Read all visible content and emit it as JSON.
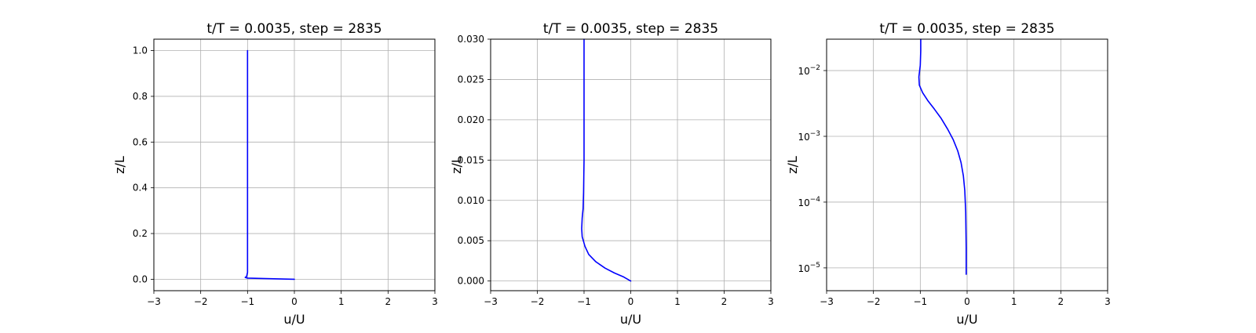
{
  "chart_data": [
    {
      "type": "line",
      "title": "t/T = 0.0035, step = 2835",
      "xlabel": "u/U",
      "ylabel": "z/L",
      "xlim": [
        -3,
        3
      ],
      "ylim": [
        -0.05,
        1.05
      ],
      "yscale": "linear",
      "grid": true,
      "xticks": [
        -3,
        -2,
        -1,
        0,
        1,
        2,
        3
      ],
      "xtick_labels": [
        "−3",
        "−2",
        "−1",
        "0",
        "1",
        "2",
        "3"
      ],
      "yticks": [
        0.0,
        0.2,
        0.4,
        0.6,
        0.8,
        1.0
      ],
      "ytick_labels": [
        "0.0",
        "0.2",
        "0.4",
        "0.6",
        "0.8",
        "1.0"
      ],
      "series": [
        {
          "color": "#0000ff",
          "x": [
            0,
            -0.6,
            -1.0,
            -1.05,
            -1.02,
            -1.0,
            -1.0,
            -1.0
          ],
          "y": [
            0,
            0.003,
            0.005,
            0.008,
            0.012,
            0.03,
            0.5,
            1.0
          ]
        }
      ]
    },
    {
      "type": "line",
      "title": "t/T = 0.0035, step = 2835",
      "xlabel": "u/U",
      "ylabel": "z/L",
      "xlim": [
        -3,
        3
      ],
      "ylim": [
        -0.0012,
        0.03
      ],
      "yscale": "linear",
      "grid": true,
      "xticks": [
        -3,
        -2,
        -1,
        0,
        1,
        2,
        3
      ],
      "xtick_labels": [
        "−3",
        "−2",
        "−1",
        "0",
        "1",
        "2",
        "3"
      ],
      "yticks": [
        0.0,
        0.005,
        0.01,
        0.015,
        0.02,
        0.025,
        0.03
      ],
      "ytick_labels": [
        "0.000",
        "0.005",
        "0.010",
        "0.015",
        "0.020",
        "0.025",
        "0.030"
      ],
      "series": [
        {
          "color": "#0000ff",
          "x": [
            0,
            -0.15,
            -0.35,
            -0.55,
            -0.75,
            -0.9,
            -0.98,
            -1.04,
            -1.05,
            -1.04,
            -1.02,
            -1.01,
            -1.0,
            -1.0,
            -1.0
          ],
          "y": [
            0,
            0.0005,
            0.001,
            0.0016,
            0.0024,
            0.0033,
            0.0043,
            0.0055,
            0.0065,
            0.0078,
            0.009,
            0.011,
            0.015,
            0.022,
            0.03
          ]
        }
      ]
    },
    {
      "type": "line",
      "title": "t/T = 0.0035, step = 2835",
      "xlabel": "u/U",
      "ylabel": "z/L",
      "xlim": [
        -3,
        3
      ],
      "ylim": [
        4.5e-06,
        0.03
      ],
      "yscale": "log",
      "grid": true,
      "xticks": [
        -3,
        -2,
        -1,
        0,
        1,
        2,
        3
      ],
      "xtick_labels": [
        "−3",
        "−2",
        "−1",
        "0",
        "1",
        "2",
        "3"
      ],
      "yticks": [
        1e-05,
        0.0001,
        0.001,
        0.01
      ],
      "ytick_labels": [
        {
          "base": "10",
          "exp": "−5"
        },
        {
          "base": "10",
          "exp": "−4"
        },
        {
          "base": "10",
          "exp": "−3"
        },
        {
          "base": "10",
          "exp": "−2"
        }
      ],
      "series": [
        {
          "color": "#0000ff",
          "x": [
            -0.02,
            -0.02,
            -0.03,
            -0.05,
            -0.08,
            -0.13,
            -0.2,
            -0.3,
            -0.42,
            -0.56,
            -0.7,
            -0.84,
            -0.95,
            -1.02,
            -1.03,
            -1.0,
            -0.99,
            -0.99
          ],
          "y": [
            8e-06,
            2e-05,
            7e-05,
            0.00015,
            0.00025,
            0.0004,
            0.0006,
            0.0009,
            0.0013,
            0.0019,
            0.0026,
            0.0035,
            0.0046,
            0.006,
            0.008,
            0.012,
            0.02,
            0.03
          ]
        }
      ]
    }
  ]
}
